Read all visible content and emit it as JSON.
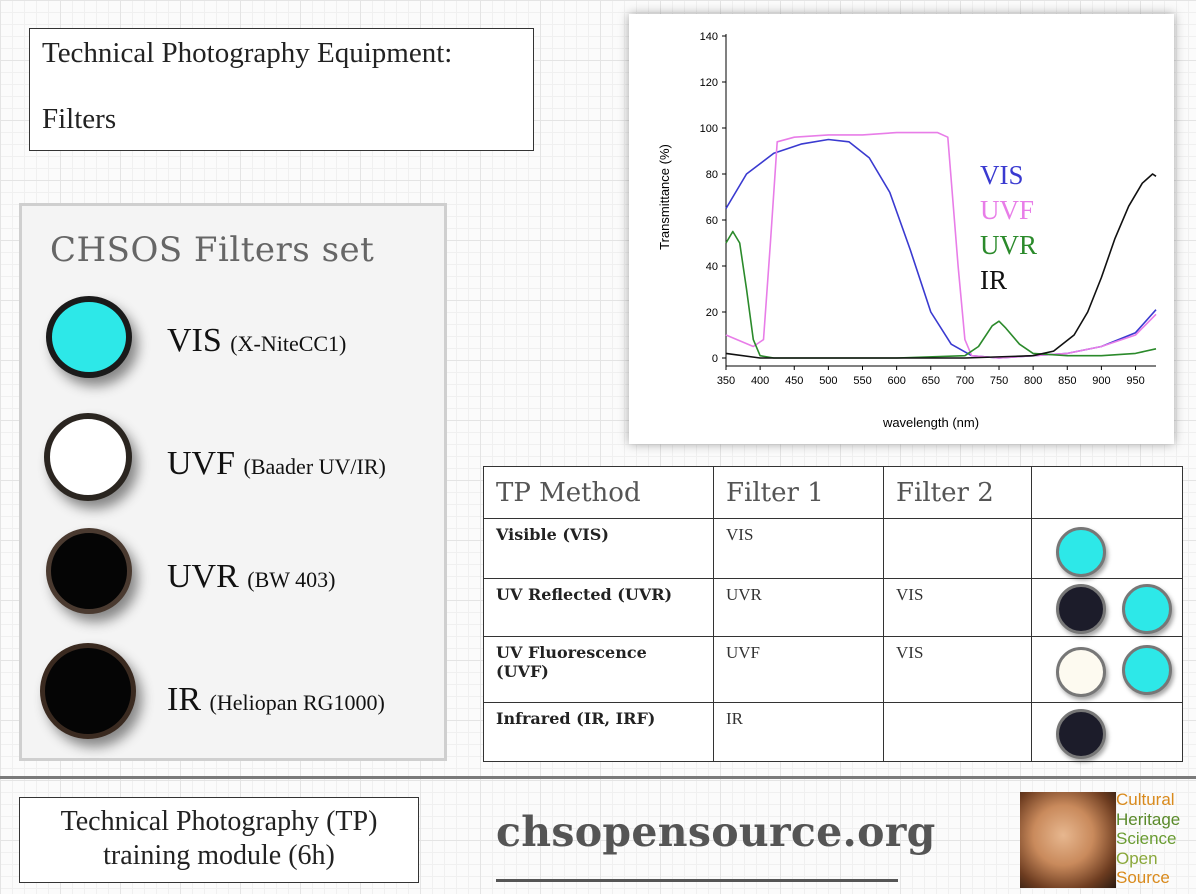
{
  "title": {
    "line1": "Technical Photography Equipment:",
    "line2": "Filters"
  },
  "filters_set": {
    "heading": "CHSOS Filters set",
    "items": [
      {
        "name": "VIS",
        "detail": "(X-NiteCC1)",
        "color": "#2de8e8"
      },
      {
        "name": "UVF",
        "detail": "(Baader UV/IR)",
        "color": "#ffffff"
      },
      {
        "name": "UVR",
        "detail": "(BW 403)",
        "color": "#050505"
      },
      {
        "name": "IR",
        "detail": "(Heliopan RG1000)",
        "color": "#050505"
      }
    ]
  },
  "chart_data": {
    "type": "line",
    "title": "",
    "xlabel": "wavelength (nm)",
    "ylabel": "Transmittance (%)",
    "xlim": [
      350,
      980
    ],
    "ylim": [
      0,
      140
    ],
    "xticks": [
      350,
      400,
      450,
      500,
      550,
      600,
      650,
      700,
      750,
      800,
      850,
      900,
      950
    ],
    "yticks": [
      0,
      20,
      40,
      60,
      80,
      100,
      120,
      140
    ],
    "legend_position": "right",
    "series": [
      {
        "name": "VIS",
        "color": "#3a3ad0",
        "x": [
          350,
          380,
          420,
          460,
          500,
          530,
          560,
          590,
          620,
          650,
          680,
          710,
          750,
          800,
          850,
          900,
          950,
          980
        ],
        "y": [
          65,
          80,
          89,
          93,
          95,
          94,
          87,
          72,
          47,
          20,
          6,
          1,
          0,
          1,
          2,
          5,
          11,
          21
        ]
      },
      {
        "name": "UVF",
        "color": "#e87de8",
        "x": [
          350,
          390,
          405,
          415,
          425,
          450,
          500,
          550,
          600,
          660,
          675,
          690,
          700,
          710,
          750,
          800,
          850,
          900,
          950,
          980
        ],
        "y": [
          10,
          5,
          8,
          50,
          94,
          96,
          97,
          97,
          98,
          98,
          96,
          40,
          8,
          1,
          0,
          1,
          2,
          5,
          10,
          19
        ]
      },
      {
        "name": "UVR",
        "color": "#2b8a2b",
        "x": [
          350,
          360,
          370,
          380,
          390,
          400,
          420,
          500,
          600,
          700,
          720,
          740,
          750,
          760,
          780,
          800,
          850,
          900,
          950,
          980
        ],
        "y": [
          50,
          55,
          50,
          30,
          8,
          1,
          0,
          0,
          0,
          1,
          5,
          14,
          16,
          13,
          6,
          2,
          1,
          1,
          2,
          4
        ]
      },
      {
        "name": "IR",
        "color": "#111111",
        "x": [
          350,
          400,
          500,
          600,
          700,
          800,
          830,
          860,
          880,
          900,
          920,
          940,
          960,
          975,
          980
        ],
        "y": [
          2,
          0,
          0,
          0,
          0,
          1,
          3,
          10,
          20,
          35,
          52,
          66,
          76,
          80,
          79
        ]
      }
    ]
  },
  "table": {
    "headers": [
      "TP Method",
      "Filter 1",
      "Filter 2",
      ""
    ],
    "rows": [
      {
        "method": "Visible (VIS)",
        "filter1": "VIS",
        "filter2": "",
        "discs": [
          "#2de8e8"
        ]
      },
      {
        "method": "UV Reflected (UVR)",
        "filter1": "UVR",
        "filter2": "VIS",
        "discs": [
          "#1c1c2a",
          "#2de8e8"
        ]
      },
      {
        "method": "UV Fluorescence (UVF)",
        "filter1": "UVF",
        "filter2": "VIS",
        "discs": [
          "#fdfaf0",
          "#2de8e8"
        ]
      },
      {
        "method": "Infrared (IR, IRF)",
        "filter1": "IR",
        "filter2": "",
        "discs": [
          "#1c1c2a"
        ]
      }
    ]
  },
  "footer": {
    "module_line1": "Technical Photography (TP)",
    "module_line2": "training module (6h)",
    "site": "chsopensource.org",
    "logo_words": [
      {
        "text": "Cultural",
        "color": "#d98a1c"
      },
      {
        "text": "Heritage",
        "color": "#5a8a2a"
      },
      {
        "text": "Science",
        "color": "#6a9c32"
      },
      {
        "text": "Open",
        "color": "#8aa83a"
      },
      {
        "text": "Source",
        "color": "#d98a1c"
      }
    ]
  }
}
